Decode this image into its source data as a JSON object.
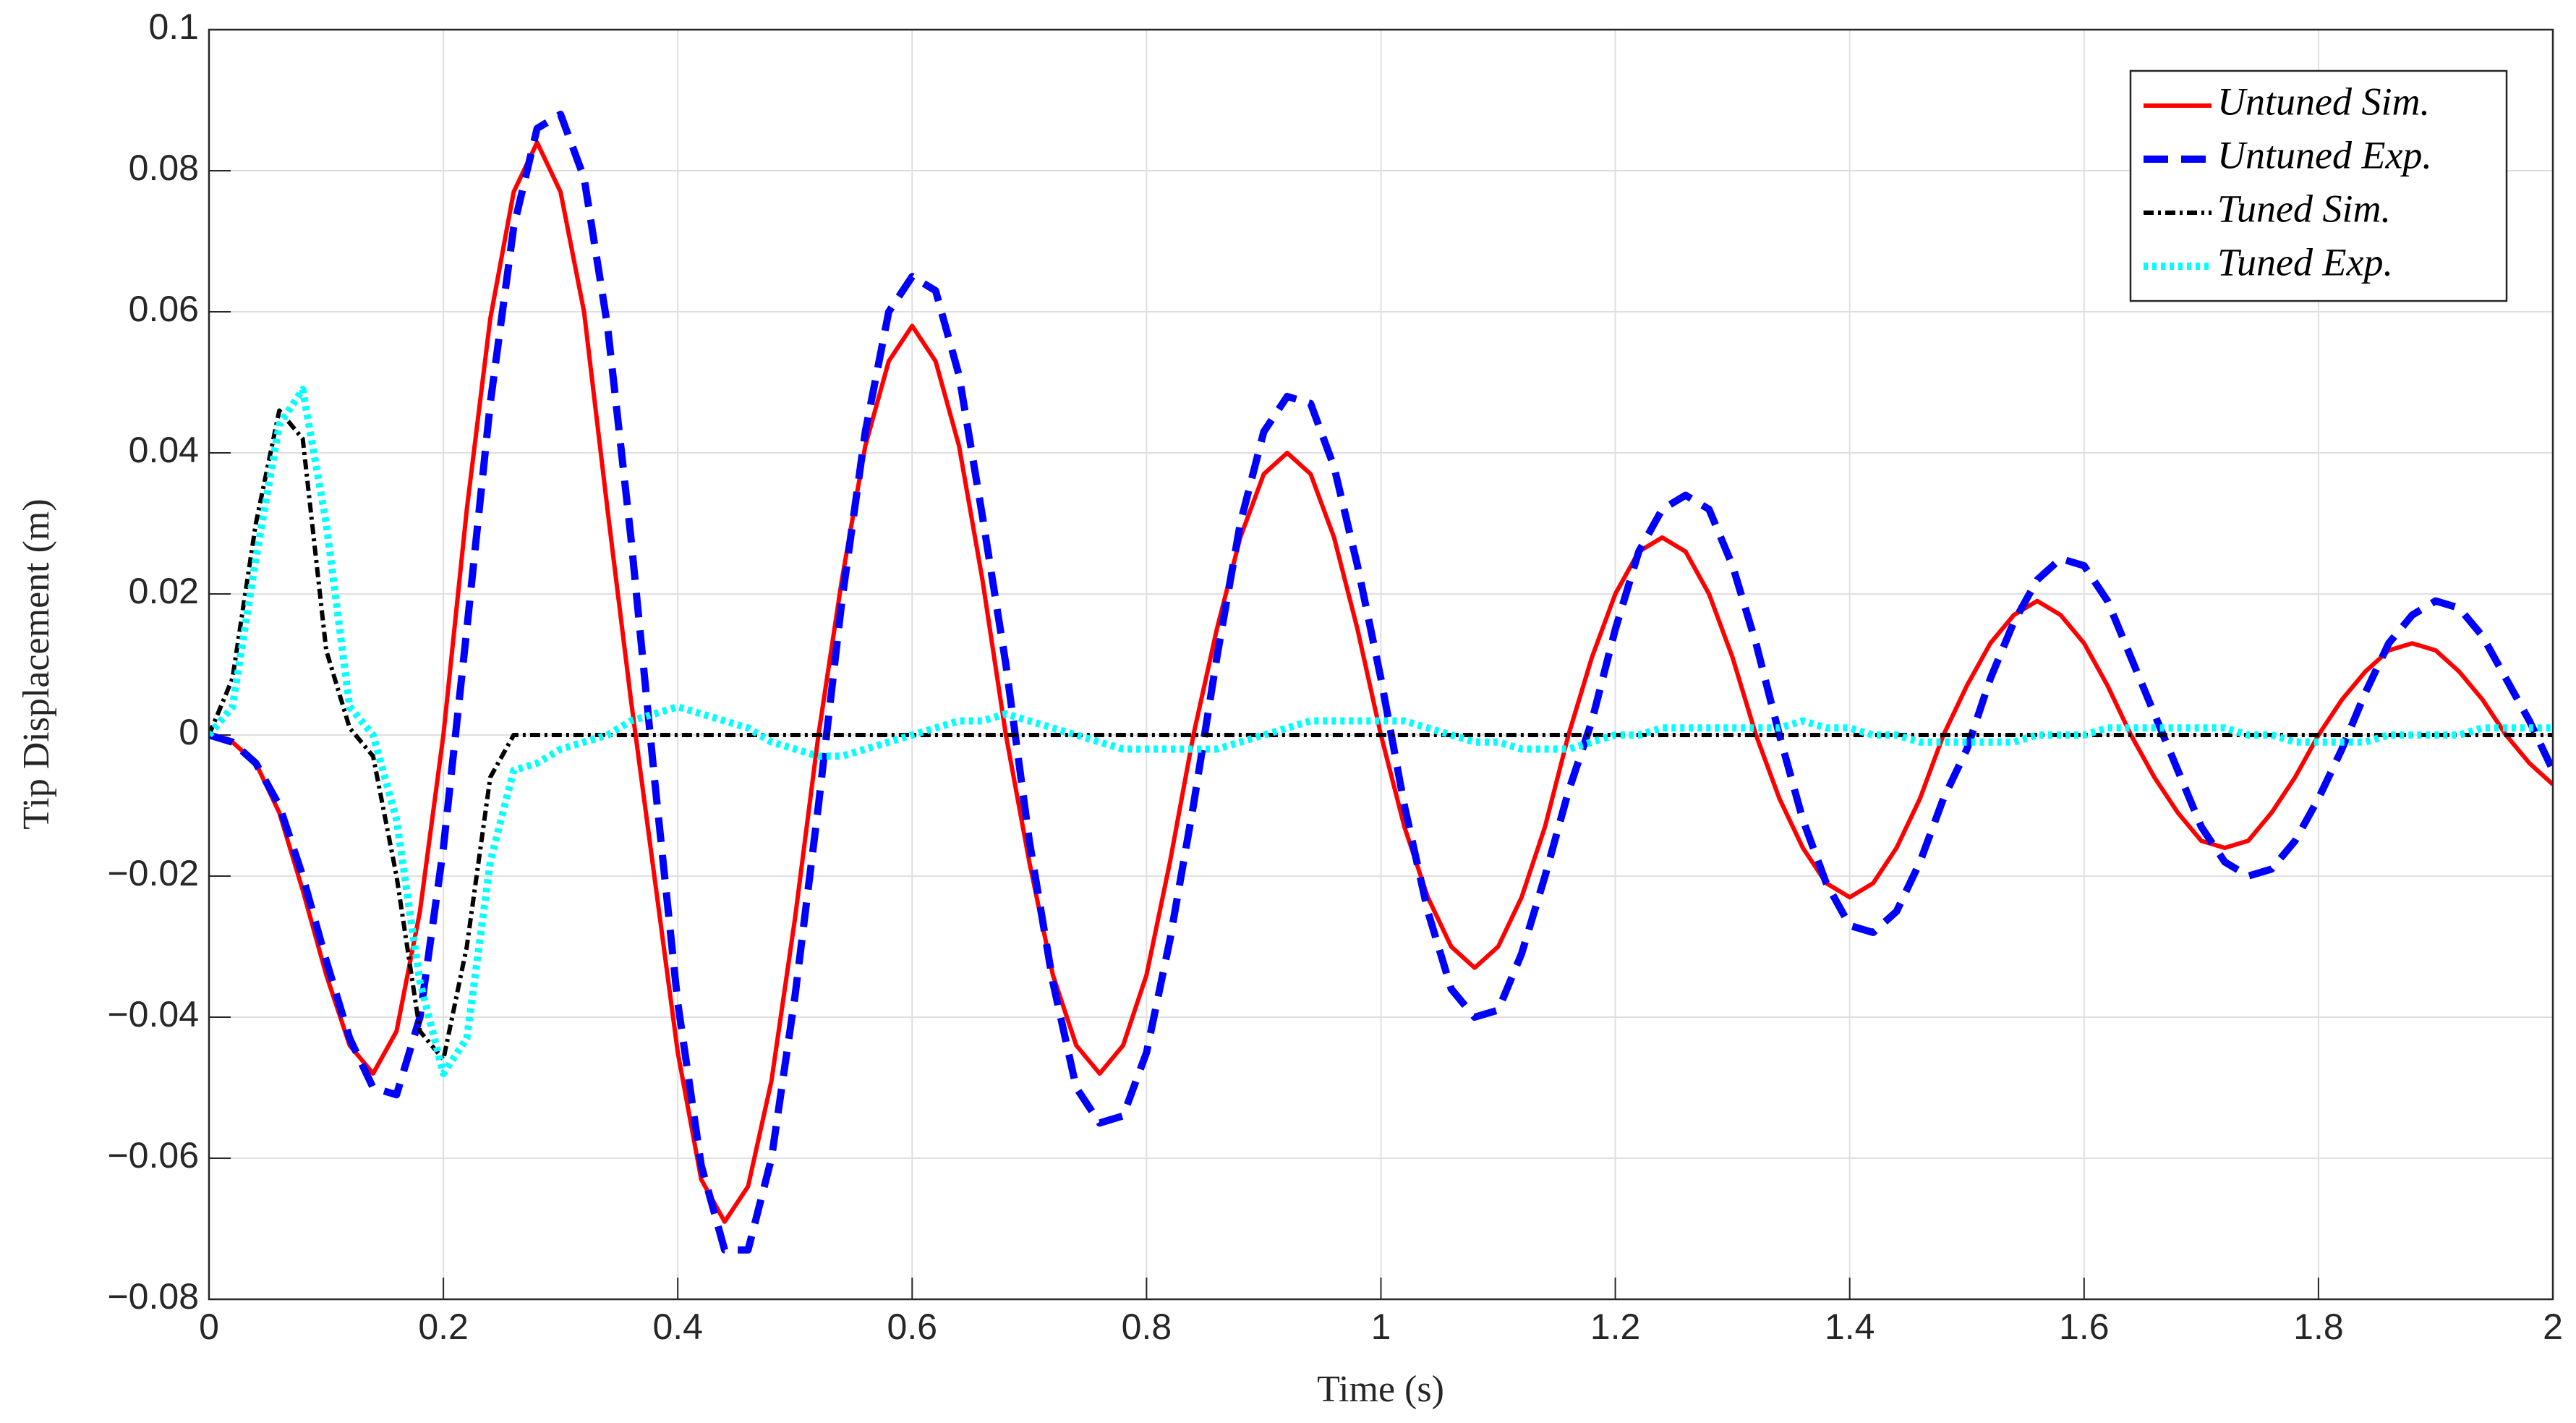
{
  "chart_data": {
    "type": "line",
    "xlabel": "Time (s)",
    "ylabel": "Tip Displacement (m)",
    "xlim": [
      0,
      2
    ],
    "ylim": [
      -0.08,
      0.1
    ],
    "xticks": [
      0,
      0.2,
      0.4,
      0.6,
      0.8,
      1,
      1.2,
      1.4,
      1.6,
      1.8,
      2
    ],
    "yticks": [
      {
        "value": -0.08,
        "label": "−0.08"
      },
      {
        "value": -0.06,
        "label": "−0.06"
      },
      {
        "value": -0.04,
        "label": "−0.04"
      },
      {
        "value": -0.02,
        "label": "−0.02"
      },
      0,
      0.02,
      0.04,
      0.06,
      0.08,
      0.1
    ],
    "grid": true,
    "legend": "upper right",
    "x": [
      0,
      0.02,
      0.04,
      0.06,
      0.08,
      0.1,
      0.12,
      0.14,
      0.16,
      0.18,
      0.2,
      0.22,
      0.24,
      0.26,
      0.28,
      0.3,
      0.32,
      0.34,
      0.36,
      0.38,
      0.4,
      0.42,
      0.44,
      0.46,
      0.48,
      0.5,
      0.52,
      0.54,
      0.56,
      0.58,
      0.6,
      0.62,
      0.64,
      0.66,
      0.68,
      0.7,
      0.72,
      0.74,
      0.76,
      0.78,
      0.8,
      0.82,
      0.84,
      0.86,
      0.88,
      0.9,
      0.92,
      0.94,
      0.96,
      0.98,
      1,
      1.02,
      1.04,
      1.06,
      1.08,
      1.1,
      1.12,
      1.14,
      1.16,
      1.18,
      1.2,
      1.22,
      1.24,
      1.26,
      1.28,
      1.3,
      1.32,
      1.34,
      1.36,
      1.38,
      1.4,
      1.42,
      1.44,
      1.46,
      1.48,
      1.5,
      1.52,
      1.54,
      1.56,
      1.58,
      1.6,
      1.62,
      1.64,
      1.66,
      1.68,
      1.7,
      1.72,
      1.74,
      1.76,
      1.78,
      1.8,
      1.82,
      1.84,
      1.86,
      1.88,
      1.9,
      1.92,
      1.94,
      1.96,
      1.98,
      2
    ],
    "series": [
      {
        "name": "Untuned Sim.",
        "color": "#ff0000",
        "style": "solid",
        "values": [
          0,
          -0.001,
          -0.004,
          -0.011,
          -0.022,
          -0.034,
          -0.044,
          -0.048,
          -0.042,
          -0.025,
          0,
          0.032,
          0.059,
          0.077,
          0.084,
          0.077,
          0.06,
          0.032,
          0.005,
          -0.02,
          -0.045,
          -0.063,
          -0.069,
          -0.064,
          -0.049,
          -0.026,
          0,
          0.022,
          0.041,
          0.053,
          0.058,
          0.053,
          0.041,
          0.022,
          0,
          -0.018,
          -0.034,
          -0.044,
          -0.048,
          -0.044,
          -0.034,
          -0.018,
          0,
          0.015,
          0.028,
          0.037,
          0.04,
          0.037,
          0.028,
          0.015,
          0,
          -0.013,
          -0.023,
          -0.03,
          -0.033,
          -0.03,
          -0.023,
          -0.013,
          0,
          0.011,
          0.02,
          0.026,
          0.028,
          0.026,
          0.02,
          0.011,
          0,
          -0.009,
          -0.016,
          -0.021,
          -0.023,
          -0.021,
          -0.016,
          -0.009,
          0,
          0.007,
          0.013,
          0.017,
          0.019,
          0.017,
          0.013,
          0.007,
          0,
          -0.006,
          -0.011,
          -0.015,
          -0.016,
          -0.015,
          -0.011,
          -0.006,
          0,
          0.005,
          0.009,
          0.012,
          0.013,
          0.012,
          0.009,
          0.005,
          0,
          -0.004,
          -0.007
        ]
      },
      {
        "name": "Untuned Exp.",
        "color": "#0000ff",
        "style": "dashed",
        "values": [
          0,
          -0.001,
          -0.004,
          -0.01,
          -0.02,
          -0.032,
          -0.043,
          -0.05,
          -0.051,
          -0.04,
          -0.016,
          0.015,
          0.047,
          0.072,
          0.086,
          0.088,
          0.079,
          0.058,
          0.028,
          -0.006,
          -0.038,
          -0.061,
          -0.073,
          -0.073,
          -0.06,
          -0.037,
          -0.01,
          0.019,
          0.043,
          0.06,
          0.065,
          0.063,
          0.051,
          0.031,
          0.01,
          -0.015,
          -0.035,
          -0.05,
          -0.055,
          -0.054,
          -0.045,
          -0.029,
          -0.01,
          0.011,
          0.03,
          0.043,
          0.048,
          0.047,
          0.038,
          0.024,
          0.008,
          -0.01,
          -0.025,
          -0.036,
          -0.04,
          -0.039,
          -0.031,
          -0.02,
          -0.008,
          0.002,
          0.015,
          0.026,
          0.032,
          0.034,
          0.032,
          0.024,
          0.013,
          0,
          -0.012,
          -0.021,
          -0.027,
          -0.028,
          -0.025,
          -0.018,
          -0.009,
          -0.002,
          0.008,
          0.016,
          0.022,
          0.025,
          0.024,
          0.019,
          0.011,
          0.003,
          -0.005,
          -0.013,
          -0.018,
          -0.02,
          -0.019,
          -0.015,
          -0.009,
          -0.002,
          0.006,
          0.013,
          0.017,
          0.019,
          0.018,
          0.014,
          0.008,
          0.002,
          -0.005
        ]
      },
      {
        "name": "Tuned Sim.",
        "color": "#000000",
        "style": "dashdot",
        "values": [
          0,
          0.008,
          0.03,
          0.046,
          0.042,
          0.012,
          0.001,
          -0.003,
          -0.02,
          -0.042,
          -0.046,
          -0.03,
          -0.006,
          0,
          0,
          0,
          0,
          0,
          0,
          0,
          0,
          0,
          0,
          0,
          0,
          0,
          0,
          0,
          0,
          0,
          0,
          0,
          0,
          0,
          0,
          0,
          0,
          0,
          0,
          0,
          0,
          0,
          0,
          0,
          0,
          0,
          0,
          0,
          0,
          0,
          0,
          0,
          0,
          0,
          0,
          0,
          0,
          0,
          0,
          0,
          0,
          0,
          0,
          0,
          0,
          0,
          0,
          0,
          0,
          0,
          0,
          0,
          0,
          0,
          0,
          0,
          0,
          0,
          0,
          0,
          0,
          0,
          0,
          0,
          0,
          0,
          0,
          0,
          0,
          0,
          0,
          0,
          0,
          0,
          0,
          0,
          0,
          0,
          0,
          0,
          0
        ]
      },
      {
        "name": "Tuned Exp.",
        "color": "#00ffff",
        "style": "dotted",
        "values": [
          0,
          0.004,
          0.025,
          0.044,
          0.049,
          0.03,
          0.004,
          0,
          -0.012,
          -0.035,
          -0.048,
          -0.043,
          -0.018,
          -0.005,
          -0.004,
          -0.002,
          -0.001,
          0,
          0.002,
          0.003,
          0.004,
          0.003,
          0.002,
          0.001,
          -0.001,
          -0.002,
          -0.003,
          -0.003,
          -0.002,
          -0.001,
          0,
          0.001,
          0.002,
          0.002,
          0.003,
          0.002,
          0.001,
          0,
          -0.001,
          -0.002,
          -0.002,
          -0.002,
          -0.002,
          -0.002,
          -0.001,
          0,
          0.001,
          0.002,
          0.002,
          0.002,
          0.002,
          0.002,
          0.001,
          0,
          -0.001,
          -0.001,
          -0.002,
          -0.002,
          -0.002,
          -0.001,
          0,
          0,
          0.001,
          0.001,
          0.001,
          0.001,
          0.001,
          0.001,
          0.002,
          0.001,
          0.001,
          0,
          0,
          -0.001,
          -0.001,
          -0.001,
          -0.001,
          -0.001,
          0,
          0,
          0,
          0.001,
          0.001,
          0.001,
          0.001,
          0.001,
          0.001,
          0,
          0,
          -0.001,
          -0.001,
          -0.001,
          -0.001,
          0,
          0,
          0,
          0,
          0.001,
          0.001,
          0.001,
          0.001
        ]
      }
    ]
  }
}
